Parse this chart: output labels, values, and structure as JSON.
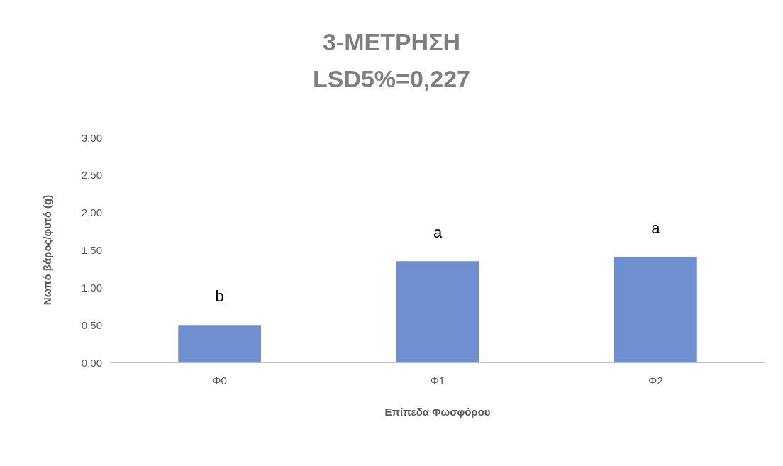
{
  "chart_data": {
    "type": "bar",
    "title": "3-ΜΕΤΡΗΣΗ\nLSD5%=0,227",
    "xlabel": "Επίπεδα Φωσφόρου",
    "ylabel": "Νωπό βάρος/φυτό (g)",
    "categories": [
      "Φ0",
      "Φ1",
      "Φ2"
    ],
    "values": [
      0.5,
      1.35,
      1.41
    ],
    "color": "#6f8fd0",
    "ylim": [
      0,
      3
    ],
    "yticks": [
      {
        "value": 0,
        "label": "0,00"
      },
      {
        "value": 0.5,
        "label": "0,50"
      },
      {
        "value": 1,
        "label": "1,00"
      },
      {
        "value": 1.5,
        "label": "1,50"
      },
      {
        "value": 2,
        "label": "2,00"
      },
      {
        "value": 2.5,
        "label": "2,50"
      },
      {
        "value": 3,
        "label": "3,00"
      }
    ],
    "grid": false,
    "annotations": [
      "b",
      "a",
      "a"
    ]
  }
}
